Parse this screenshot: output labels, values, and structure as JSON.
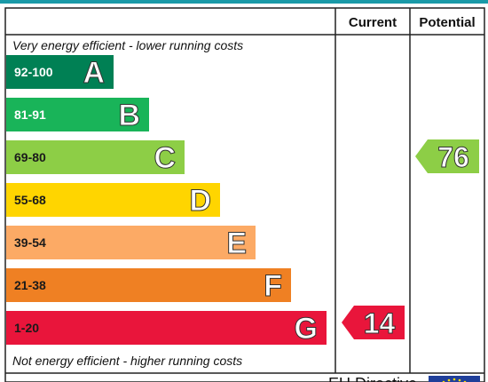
{
  "chart_data": {
    "type": "table",
    "columns": [
      "Current",
      "Potential"
    ],
    "top_note": "Very energy efficient - lower running costs",
    "bottom_note": "Not energy efficient - higher running costs",
    "footer_text": "EU Directive",
    "bands": [
      {
        "range": "92-100",
        "letter": "A",
        "color": "#008054",
        "range_color": "#ffffff"
      },
      {
        "range": "81-91",
        "letter": "B",
        "color": "#19b459",
        "range_color": "#ffffff"
      },
      {
        "range": "69-80",
        "letter": "C",
        "color": "#8dce46",
        "range_color": "#1a1a1a"
      },
      {
        "range": "55-68",
        "letter": "D",
        "color": "#ffd500",
        "range_color": "#1a1a1a"
      },
      {
        "range": "39-54",
        "letter": "E",
        "color": "#fcaa65",
        "range_color": "#1a1a1a"
      },
      {
        "range": "21-38",
        "letter": "F",
        "color": "#ef8023",
        "range_color": "#1a1a1a"
      },
      {
        "range": "1-20",
        "letter": "G",
        "color": "#e9153b",
        "range_color": "#1a1a1a"
      }
    ],
    "current": {
      "value": 14,
      "band": "G",
      "color": "#e9153b"
    },
    "potential": {
      "value": 76,
      "band": "C",
      "color": "#8dce46"
    }
  }
}
